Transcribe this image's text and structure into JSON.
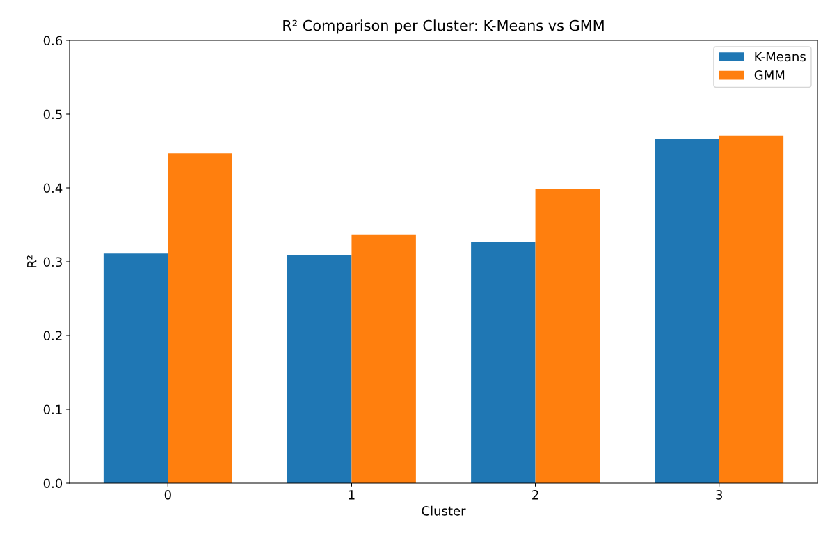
{
  "chart_data": {
    "type": "bar",
    "title": "R² Comparison per Cluster: K-Means vs GMM",
    "xlabel": "Cluster",
    "ylabel": "R²",
    "categories": [
      "0",
      "1",
      "2",
      "3"
    ],
    "series": [
      {
        "name": "K-Means",
        "color": "#1f77b4",
        "values": [
          0.311,
          0.309,
          0.327,
          0.467
        ]
      },
      {
        "name": "GMM",
        "color": "#ff7f0e",
        "values": [
          0.447,
          0.337,
          0.398,
          0.471
        ]
      }
    ],
    "ylim": [
      0,
      0.6
    ],
    "yticks": [
      {
        "value": 0,
        "label": "0.0"
      },
      0.1,
      0.2,
      0.3,
      0.4,
      0.5,
      0.6
    ],
    "grid": false,
    "legend": "top right"
  }
}
